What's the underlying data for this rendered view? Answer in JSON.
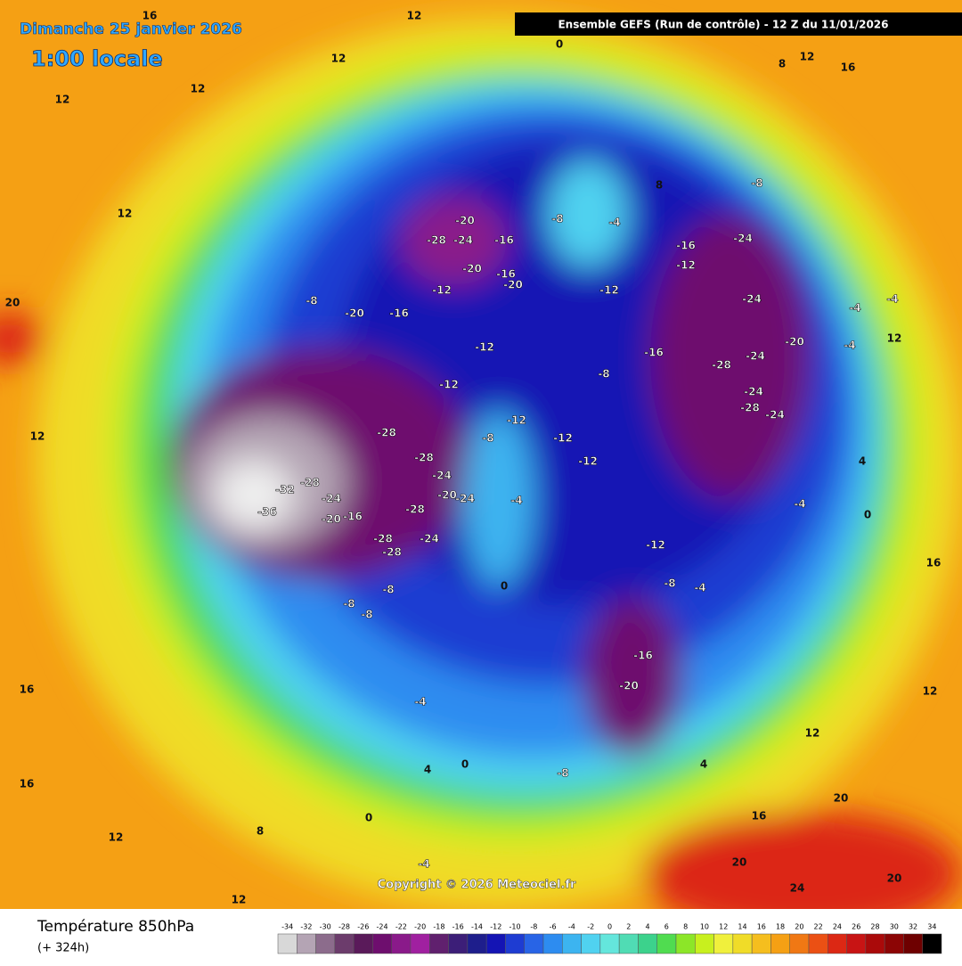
{
  "header": {
    "title": "Dimanche 25 janvier 2026",
    "time": "1:00 locale",
    "run": "Ensemble GEFS  (Run de contrôle)  -  12 Z du 11/01/2026",
    "copyright": "Copyright © 2026 Meteociel.fr"
  },
  "legend": {
    "title": "Température 850hPa",
    "lead": "(+ 324h)",
    "ticks": [
      -34,
      -32,
      -30,
      -28,
      -26,
      -24,
      -22,
      -20,
      -18,
      -16,
      -14,
      -12,
      -10,
      -8,
      -6,
      -4,
      -2,
      0,
      2,
      4,
      6,
      8,
      10,
      12,
      14,
      16,
      18,
      20,
      22,
      24,
      26,
      28,
      30,
      32,
      34
    ],
    "colors": [
      "#d8d8d8",
      "#b4a4b4",
      "#8c6c8c",
      "#6c3c6c",
      "#5a1a5a",
      "#6e0e6e",
      "#8a1a8a",
      "#a020a0",
      "#60206e",
      "#3c1e78",
      "#1e1e8c",
      "#1414b4",
      "#1e3cd2",
      "#2864e6",
      "#2d8cf0",
      "#3cb4f0",
      "#50d2f0",
      "#64e6dc",
      "#50dcb4",
      "#3cd28c",
      "#50dc50",
      "#8ce628",
      "#c8f01e",
      "#f0f03c",
      "#f0dc28",
      "#f5be1e",
      "#f5a014",
      "#f07814",
      "#eb5014",
      "#dc2814",
      "#c81414",
      "#aa0a0a",
      "#8c0505",
      "#6e0000",
      "#000000"
    ]
  },
  "map": {
    "labels": [
      "0",
      "12",
      "16",
      "12",
      "8",
      "12",
      "16",
      "12",
      "12",
      "12",
      "8",
      "-8",
      "-8",
      "-4",
      "-20",
      "-28",
      "-24",
      "-16",
      "-20",
      "-16",
      "-20",
      "-12",
      "-12",
      "-16",
      "-24",
      "-12",
      "-24",
      "-20",
      "-16",
      "-8",
      "-12",
      "-16",
      "-28",
      "-24",
      "-20",
      "-12",
      "-8",
      "-12",
      "-8",
      "-12",
      "-12",
      "-28",
      "-28",
      "-24",
      "-28",
      "-32",
      "-36",
      "-24",
      "-20",
      "-16",
      "-20",
      "-24",
      "-28",
      "-24",
      "-28",
      "-28",
      "-4",
      "-12",
      "-8",
      "-4",
      "-8",
      "-8",
      "-8",
      "0",
      "-16",
      "-20",
      "-4",
      "0",
      "4",
      "0",
      "-4",
      "-8",
      "4",
      "12",
      "16",
      "20",
      "20",
      "24",
      "20",
      "16",
      "-4",
      "-4",
      "-4",
      "4",
      "-4",
      "0",
      "12",
      "16",
      "16",
      "12",
      "8",
      "12",
      "20",
      "12",
      "12",
      "-24",
      "-28",
      "-24"
    ]
  }
}
